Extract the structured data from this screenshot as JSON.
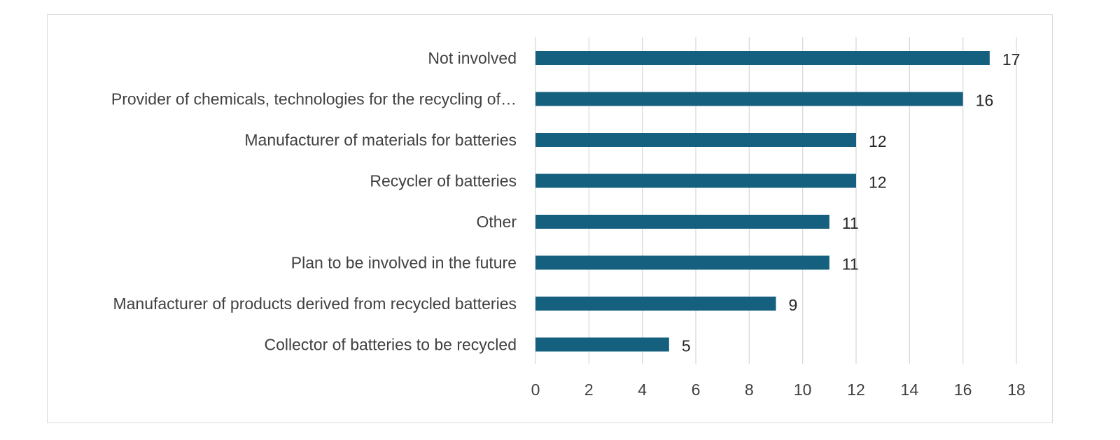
{
  "chart_data": {
    "type": "bar",
    "orientation": "horizontal",
    "categories": [
      "Not involved",
      "Provider of chemicals, technologies for the recycling of…",
      "Manufacturer of materials for batteries",
      "Recycler of batteries",
      "Other",
      "Plan to be involved in the future",
      "Manufacturer of products derived from recycled batteries",
      "Collector of batteries to be recycled"
    ],
    "values": [
      17,
      16,
      12,
      12,
      11,
      11,
      9,
      5
    ],
    "xlim": [
      0,
      18
    ],
    "xticks": [
      0,
      2,
      4,
      6,
      8,
      10,
      12,
      14,
      16,
      18
    ],
    "grid": "vertical",
    "data_labels": true,
    "bar_color": "#16607f"
  }
}
